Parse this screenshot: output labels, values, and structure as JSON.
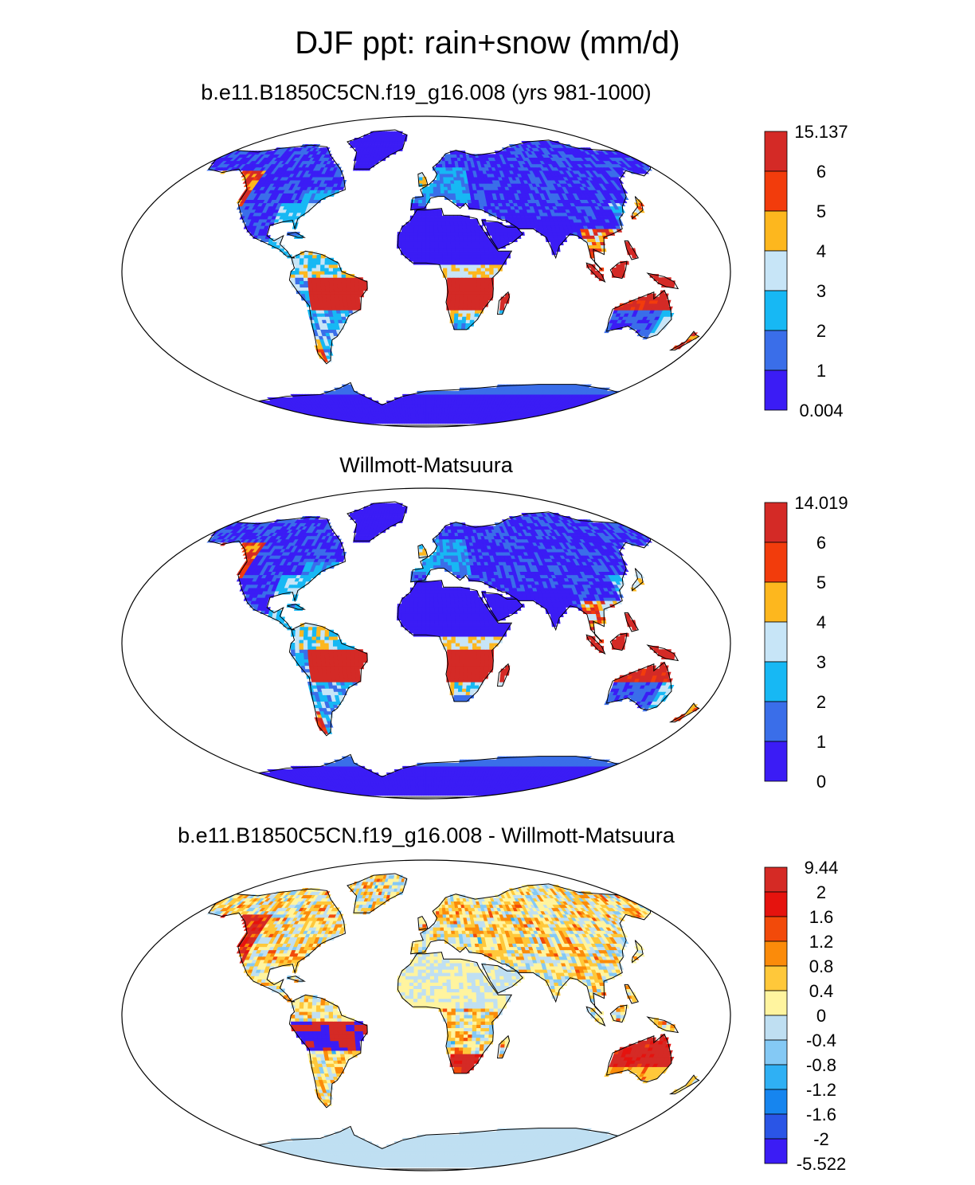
{
  "title": "DJF ppt: rain+snow (mm/d)",
  "colors": {
    "land_outline": "#000000",
    "map_border": "#000000"
  },
  "panels": [
    {
      "title": "b.e11.B1850C5CN.f19_g16.008 (yrs 981-1000)",
      "kind": "absolute",
      "colorbar": {
        "labels": [
          "15.137",
          "6",
          "5",
          "4",
          "3",
          "2",
          "1",
          "0.004"
        ],
        "colors": [
          "#d42a26",
          "#f23c0c",
          "#fdb71e",
          "#c7e5f7",
          "#17b8f4",
          "#3a6ee9",
          "#3b1cf5"
        ]
      }
    },
    {
      "title": "Willmott-Matsuura",
      "kind": "absolute",
      "colorbar": {
        "labels": [
          "14.019",
          "6",
          "5",
          "4",
          "3",
          "2",
          "1",
          "0"
        ],
        "colors": [
          "#d42a26",
          "#f23c0c",
          "#fdb71e",
          "#c7e5f7",
          "#17b8f4",
          "#3a6ee9",
          "#3b1cf5"
        ]
      }
    },
    {
      "title": "b.e11.B1850C5CN.f19_g16.008 - Willmott-Matsuura",
      "kind": "difference",
      "colorbar": {
        "labels": [
          "9.44",
          "2",
          "1.6",
          "1.2",
          "0.8",
          "0.4",
          "0",
          "-0.4",
          "-0.8",
          "-1.2",
          "-1.6",
          "-2",
          "-5.522"
        ],
        "colors": [
          "#d52a25",
          "#e5130e",
          "#f24a0a",
          "#fb8b0a",
          "#ffc83a",
          "#fff49f",
          "#bfdff2",
          "#84c9f5",
          "#2fb0f4",
          "#1685ef",
          "#2a55e6",
          "#3b1cf5"
        ]
      }
    }
  ]
}
